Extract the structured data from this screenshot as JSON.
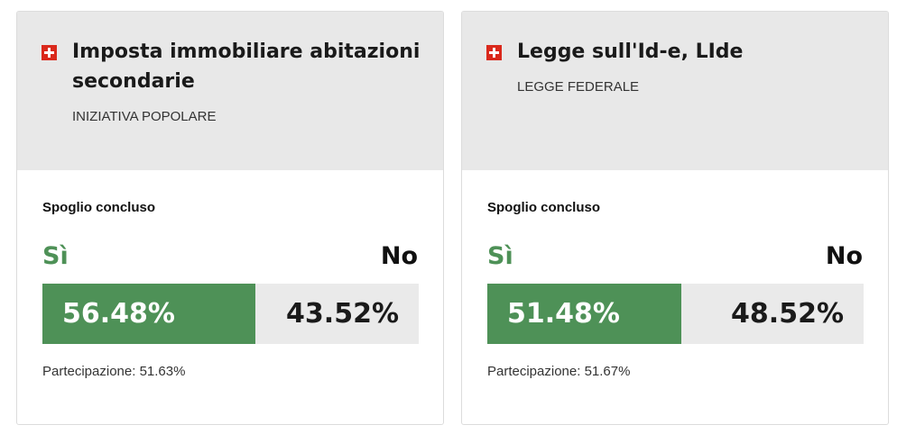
{
  "cards": [
    {
      "title": "Imposta immobiliare abitazioni secondarie",
      "kind": "INIZIATIVA POPOLARE",
      "status": "Spoglio concluso",
      "yes_label": "Sì",
      "no_label": "No",
      "yes_pct": "56.48%",
      "no_pct": "43.52%",
      "yes_share": 0.5648,
      "turnout": "Partecipazione: 51.63%",
      "flag_icon": "swiss-flag-icon"
    },
    {
      "title": "Legge sull'Id-e, LIde",
      "kind": "LEGGE FEDERALE",
      "status": "Spoglio concluso",
      "yes_label": "Sì",
      "no_label": "No",
      "yes_pct": "51.48%",
      "no_pct": "48.52%",
      "yes_share": 0.5148,
      "turnout": "Partecipazione: 51.67%",
      "flag_icon": "swiss-flag-icon"
    }
  ],
  "colors": {
    "yes": "#4e9157",
    "header_bg": "#e8e8e8",
    "bar_bg": "#eaeaea",
    "flag": "#da291c"
  }
}
